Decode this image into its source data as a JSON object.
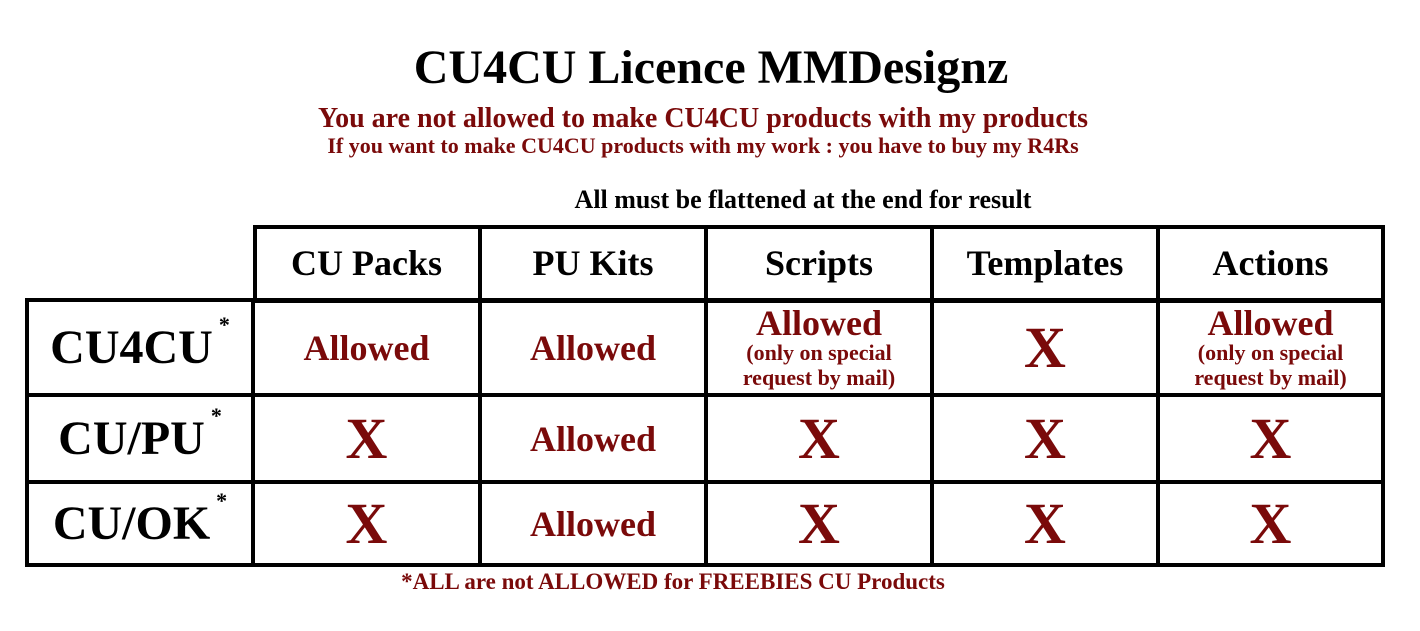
{
  "title": "CU4CU Licence MMDesignz",
  "subtitle1": "You are not allowed to make CU4CU products with my products",
  "subtitle2": "If you want to make CU4CU products with my work : you have to buy my R4Rs",
  "note_top": "All must be flattened at the end for result",
  "columns": [
    "CU Packs",
    "PU Kits",
    "Scripts",
    "Templates",
    "Actions"
  ],
  "rows": [
    {
      "label": "CU4CU",
      "mark": "*",
      "cells": [
        {
          "value": "Allowed"
        },
        {
          "value": "Allowed"
        },
        {
          "value": "Allowed",
          "note1": "(only on special",
          "note2": "request by mail)"
        },
        {
          "value": "X"
        },
        {
          "value": "Allowed",
          "note1": "(only on special",
          "note2": "request by mail)"
        }
      ]
    },
    {
      "label": "CU/PU",
      "mark": "*",
      "cells": [
        {
          "value": "X"
        },
        {
          "value": "Allowed"
        },
        {
          "value": "X"
        },
        {
          "value": "X"
        },
        {
          "value": "X"
        }
      ]
    },
    {
      "label": "CU/OK",
      "mark": "*",
      "cells": [
        {
          "value": "X"
        },
        {
          "value": "Allowed"
        },
        {
          "value": "X"
        },
        {
          "value": "X"
        },
        {
          "value": "X"
        }
      ]
    }
  ],
  "footer": "*ALL are not ALLOWED for FREEBIES CU Products",
  "colors": {
    "accent": "#7a0a0a",
    "text": "#000000"
  }
}
